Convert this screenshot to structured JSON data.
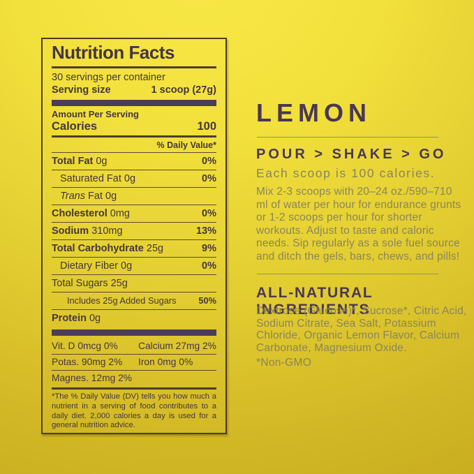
{
  "colors": {
    "background_top": "#f8e847",
    "background_bottom": "#c7ab1e",
    "heading_plum": "#4a3754",
    "muted_body_text": "#8b8459",
    "label_text": "#453640",
    "label_bar_purple": "#4c3d57"
  },
  "nutrition_label": {
    "title": "Nutrition Facts",
    "servings_line": "30 servings per container",
    "serving_size_label": "Serving size",
    "serving_size_value": "1 scoop (27g)",
    "amount_per_serving": "Amount Per Serving",
    "calories_label": "Calories",
    "calories_value": "100",
    "daily_value_header": "% Daily Value*",
    "rows": [
      {
        "bold": "Total Fat",
        "text": " 0g",
        "value": "0%"
      },
      {
        "text": "Saturated Fat 0g",
        "value": "0%"
      },
      {
        "italic": "Trans",
        "text": " Fat 0g",
        "value": ""
      },
      {
        "bold": "Cholesterol",
        "text": " 0mg",
        "value": "0%"
      },
      {
        "bold": "Sodium",
        "text": " 310mg",
        "value": "13%"
      },
      {
        "bold": "Total Carbohydrate",
        "text": " 25g",
        "value": "9%"
      },
      {
        "text": "Dietary Fiber 0g",
        "value": "0%"
      },
      {
        "text": "Total Sugars 25g",
        "value": ""
      },
      {
        "text": "Includes 25g Added Sugars",
        "value": "50%"
      },
      {
        "bold": "Protein",
        "text": " 0g",
        "value": ""
      }
    ],
    "micros": [
      {
        "c1": "Vit. D 0mcg 0%",
        "c2": "Calcium 27mg 2%"
      },
      {
        "c1": "Potas. 90mg 2%",
        "c2": "Iron 0mg 0%"
      },
      {
        "c1": "Magnes. 12mg 2%",
        "c2": ""
      }
    ],
    "footnote": "*The % Daily Value (DV) tells you how much a nutrient in a serving of food contributes to a daily diet. 2,000 calories a day is used for a general nutrition advice."
  },
  "product_panel": {
    "flavor_name": "LEMON",
    "usage_heading": "POUR > SHAKE > GO",
    "usage_subheading": "Each scoop is 100 calories.",
    "usage_body": "Mix 2-3 scoops with 20–24 oz./590–710 ml of water per hour for endurance grunts or 1-2 scoops per hour for shorter workouts. Adjust to taste and caloric needs. Sip regularly as a sole fuel source and ditch the gels, bars, chews, and pills!",
    "ingredients_heading": "ALL-NATURAL INGREDIENTS",
    "ingredients_body": "Dextrose (Glucose)*, Sucrose*, Citric Acid, Sodium Citrate, Sea Salt, Potassium Chloride, Organic Lemon Flavor, Calcium Carbonate, Magnesium Oxide.",
    "non_gmo_note": "*Non-GMO"
  }
}
